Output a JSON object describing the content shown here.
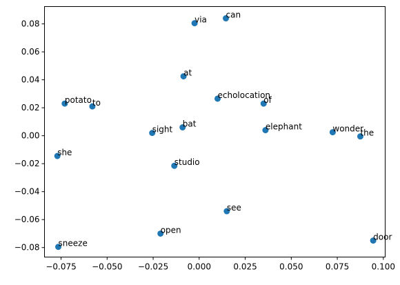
{
  "chart_data": {
    "type": "scatter",
    "title": "",
    "xlabel": "",
    "ylabel": "",
    "xlim": [
      -0.084,
      0.101
    ],
    "ylim": [
      -0.0868,
      0.0924
    ],
    "grid": false,
    "marker_color": "#1f77b4",
    "x_ticks": [
      {
        "value": -0.075,
        "label": "−0.075"
      },
      {
        "value": -0.05,
        "label": "−0.050"
      },
      {
        "value": -0.025,
        "label": "−0.025"
      },
      {
        "value": 0.0,
        "label": "0.000"
      },
      {
        "value": 0.025,
        "label": "0.025"
      },
      {
        "value": 0.05,
        "label": "0.050"
      },
      {
        "value": 0.075,
        "label": "0.075"
      },
      {
        "value": 0.1,
        "label": "0.100"
      }
    ],
    "y_ticks": [
      {
        "value": -0.08,
        "label": "−0.08"
      },
      {
        "value": -0.06,
        "label": "−0.06"
      },
      {
        "value": -0.04,
        "label": "−0.04"
      },
      {
        "value": -0.02,
        "label": "−0.02"
      },
      {
        "value": 0.0,
        "label": "0.00"
      },
      {
        "value": 0.02,
        "label": "0.02"
      },
      {
        "value": 0.04,
        "label": "0.04"
      },
      {
        "value": 0.06,
        "label": "0.06"
      },
      {
        "value": 0.08,
        "label": "0.08"
      }
    ],
    "points": [
      {
        "label": "via",
        "x": -0.0025,
        "y": 0.0805
      },
      {
        "label": "can",
        "x": 0.0145,
        "y": 0.084
      },
      {
        "label": "at",
        "x": -0.0085,
        "y": 0.0425
      },
      {
        "label": "potato",
        "x": -0.073,
        "y": 0.023
      },
      {
        "label": "to",
        "x": -0.058,
        "y": 0.021
      },
      {
        "label": "echolocation",
        "x": 0.01,
        "y": 0.0265
      },
      {
        "label": "of",
        "x": 0.035,
        "y": 0.023
      },
      {
        "label": "bat",
        "x": -0.009,
        "y": 0.006
      },
      {
        "label": "sight",
        "x": -0.0255,
        "y": 0.002
      },
      {
        "label": "elephant",
        "x": 0.036,
        "y": 0.004
      },
      {
        "label": "wonder",
        "x": 0.0725,
        "y": 0.0025
      },
      {
        "label": "the",
        "x": 0.0875,
        "y": -0.0005
      },
      {
        "label": "she",
        "x": -0.077,
        "y": -0.0145
      },
      {
        "label": "studio",
        "x": -0.0135,
        "y": -0.0215
      },
      {
        "label": "see",
        "x": 0.015,
        "y": -0.054
      },
      {
        "label": "open",
        "x": -0.021,
        "y": -0.07
      },
      {
        "label": "door",
        "x": 0.0945,
        "y": -0.075
      },
      {
        "label": "sneeze",
        "x": -0.0765,
        "y": -0.0795
      }
    ]
  }
}
